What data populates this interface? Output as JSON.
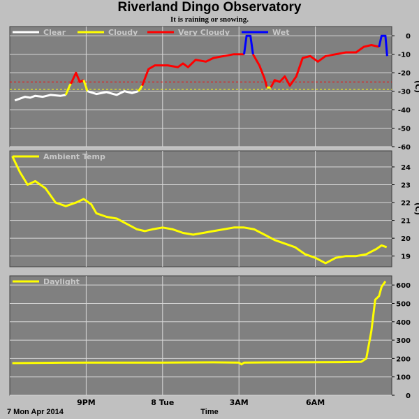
{
  "title": "Riverland Dingo Observatory",
  "subtitle": "It is raining or snowing.",
  "date_label": "7 Mon Apr 2014",
  "xlabel": "Time",
  "colors": {
    "background": "#c0c0c0",
    "plot_bg": "#808080",
    "grid": "#d8d8d8",
    "clear": "#ffffff",
    "cloudy": "#ffff00",
    "very_cloudy": "#ff0000",
    "wet": "#0000ff",
    "temp": "#ffff00",
    "daylight": "#ffff00"
  },
  "chart_data": [
    {
      "type": "line",
      "panel": "sky",
      "unit": "(C)",
      "ylim": [
        -60,
        5
      ],
      "yticks": [
        "0",
        "-10",
        "-20",
        "-30",
        "-40",
        "-50",
        "-60"
      ],
      "xticks": [
        "9PM",
        "8 Tue",
        "3AM",
        "6AM"
      ],
      "legend": [
        "Clear",
        "Cloudy",
        "Very Cloudy",
        "Wet"
      ],
      "thresholds": [
        {
          "value": -25,
          "color": "#ff0000"
        },
        {
          "value": -29,
          "color": "#ffff00"
        }
      ],
      "series": [
        {
          "name": "Clear",
          "color": "#ffffff",
          "points": [
            [
              18.2,
              -35
            ],
            [
              18.4,
              -34
            ],
            [
              18.6,
              -33
            ],
            [
              18.8,
              -33.5
            ],
            [
              19,
              -32.5
            ],
            [
              19.3,
              -33
            ],
            [
              19.6,
              -32
            ],
            [
              20,
              -32.5
            ],
            [
              20.2,
              -32
            ]
          ]
        },
        {
          "name": "Cloudy",
          "color": "#ffff00",
          "points": [
            [
              20.2,
              -32
            ],
            [
              20.35,
              -27
            ],
            [
              20.4,
              -26
            ]
          ]
        },
        {
          "name": "Very Cloudy",
          "color": "#ff0000",
          "points": [
            [
              20.4,
              -26
            ],
            [
              20.6,
              -20
            ],
            [
              20.75,
              -25
            ],
            [
              20.9,
              -24
            ]
          ]
        },
        {
          "name": "Cloudy",
          "color": "#ffff00",
          "points": [
            [
              20.9,
              -24
            ],
            [
              21.05,
              -30
            ]
          ]
        },
        {
          "name": "Clear",
          "color": "#ffffff",
          "points": [
            [
              21.05,
              -30
            ],
            [
              21.4,
              -31.5
            ],
            [
              21.8,
              -30.5
            ],
            [
              22.2,
              -32
            ],
            [
              22.5,
              -30
            ],
            [
              22.8,
              -31
            ],
            [
              23.05,
              -30
            ]
          ]
        },
        {
          "name": "Cloudy",
          "color": "#ffff00",
          "points": [
            [
              23.05,
              -30
            ],
            [
              23.2,
              -27
            ]
          ]
        },
        {
          "name": "Very Cloudy",
          "color": "#ff0000",
          "points": [
            [
              23.2,
              -27
            ],
            [
              23.45,
              -18
            ],
            [
              23.7,
              -16
            ],
            [
              24.2,
              -16
            ],
            [
              24.6,
              -17
            ],
            [
              24.8,
              -15
            ],
            [
              25,
              -17
            ],
            [
              25.3,
              -13
            ],
            [
              25.7,
              -14
            ],
            [
              26,
              -12
            ],
            [
              26.4,
              -11
            ],
            [
              26.8,
              -10
            ],
            [
              27.2,
              -10
            ]
          ]
        },
        {
          "name": "Wet",
          "color": "#0000ff",
          "points": [
            [
              27.2,
              -10
            ],
            [
              27.3,
              0
            ],
            [
              27.45,
              0
            ],
            [
              27.55,
              -10
            ]
          ]
        },
        {
          "name": "Very Cloudy",
          "color": "#ff0000",
          "points": [
            [
              27.55,
              -10
            ],
            [
              27.8,
              -16
            ],
            [
              28,
              -23
            ],
            [
              28.1,
              -28
            ]
          ]
        },
        {
          "name": "Cloudy",
          "color": "#ffff00",
          "points": [
            [
              28.1,
              -28
            ],
            [
              28.25,
              -28
            ]
          ]
        },
        {
          "name": "Very Cloudy",
          "color": "#ff0000",
          "points": [
            [
              28.25,
              -28
            ],
            [
              28.4,
              -24
            ],
            [
              28.6,
              -25
            ],
            [
              28.8,
              -22
            ],
            [
              29,
              -27
            ],
            [
              29.25,
              -22
            ],
            [
              29.5,
              -12
            ],
            [
              29.8,
              -11
            ],
            [
              30.1,
              -14
            ],
            [
              30.4,
              -11
            ],
            [
              30.8,
              -10
            ],
            [
              31.2,
              -9
            ],
            [
              31.6,
              -9
            ],
            [
              31.9,
              -6
            ],
            [
              32.2,
              -5
            ],
            [
              32.5,
              -6
            ]
          ]
        },
        {
          "name": "Wet",
          "color": "#0000ff",
          "points": [
            [
              32.5,
              -6
            ],
            [
              32.6,
              0
            ],
            [
              32.75,
              0
            ],
            [
              32.82,
              -11
            ]
          ]
        }
      ]
    },
    {
      "type": "line",
      "panel": "ambient",
      "unit": "(C)",
      "ylim": [
        18.4,
        24.9
      ],
      "yticks": [
        "24",
        "23",
        "22",
        "21",
        "20",
        "19"
      ],
      "xticks": [
        "9PM",
        "8 Tue",
        "3AM",
        "6AM"
      ],
      "legend": [
        "Ambient Temp"
      ],
      "series": [
        {
          "name": "Ambient Temp",
          "color": "#ffff00",
          "points": [
            [
              18.1,
              24.6
            ],
            [
              18.4,
              23.7
            ],
            [
              18.7,
              23.0
            ],
            [
              19.0,
              23.2
            ],
            [
              19.4,
              22.8
            ],
            [
              19.8,
              22.0
            ],
            [
              20.2,
              21.8
            ],
            [
              20.6,
              22.0
            ],
            [
              20.9,
              22.2
            ],
            [
              21.2,
              21.9
            ],
            [
              21.4,
              21.4
            ],
            [
              21.8,
              21.2
            ],
            [
              22.2,
              21.1
            ],
            [
              22.6,
              20.8
            ],
            [
              23.0,
              20.5
            ],
            [
              23.3,
              20.4
            ],
            [
              23.6,
              20.5
            ],
            [
              24.0,
              20.6
            ],
            [
              24.4,
              20.5
            ],
            [
              24.8,
              20.3
            ],
            [
              25.2,
              20.2
            ],
            [
              25.6,
              20.3
            ],
            [
              26.0,
              20.4
            ],
            [
              26.4,
              20.5
            ],
            [
              26.8,
              20.6
            ],
            [
              27.2,
              20.6
            ],
            [
              27.6,
              20.5
            ],
            [
              28.0,
              20.2
            ],
            [
              28.4,
              19.9
            ],
            [
              28.8,
              19.7
            ],
            [
              29.2,
              19.5
            ],
            [
              29.6,
              19.1
            ],
            [
              30.0,
              18.9
            ],
            [
              30.4,
              18.6
            ],
            [
              30.8,
              18.9
            ],
            [
              31.2,
              19.0
            ],
            [
              31.6,
              19.0
            ],
            [
              32.0,
              19.1
            ],
            [
              32.4,
              19.4
            ],
            [
              32.6,
              19.6
            ],
            [
              32.8,
              19.5
            ]
          ]
        }
      ]
    },
    {
      "type": "line",
      "panel": "daylight",
      "unit": "",
      "ylim": [
        0,
        650
      ],
      "yticks": [
        "600",
        "500",
        "400",
        "300",
        "200",
        "100",
        "0"
      ],
      "xticks": [
        "9PM",
        "8 Tue",
        "3AM",
        "6AM"
      ],
      "legend": [
        "Daylight"
      ],
      "series": [
        {
          "name": "Daylight",
          "color": "#ffff00",
          "points": [
            [
              18.1,
              175
            ],
            [
              20,
              177
            ],
            [
              22,
              178
            ],
            [
              24,
              178
            ],
            [
              26,
              179
            ],
            [
              27,
              178
            ],
            [
              27.1,
              168
            ],
            [
              27.2,
              178
            ],
            [
              29,
              179
            ],
            [
              31,
              180
            ],
            [
              31.8,
              182
            ],
            [
              32.0,
              200
            ],
            [
              32.2,
              350
            ],
            [
              32.35,
              520
            ],
            [
              32.5,
              540
            ],
            [
              32.6,
              590
            ],
            [
              32.75,
              620
            ]
          ]
        }
      ]
    }
  ]
}
